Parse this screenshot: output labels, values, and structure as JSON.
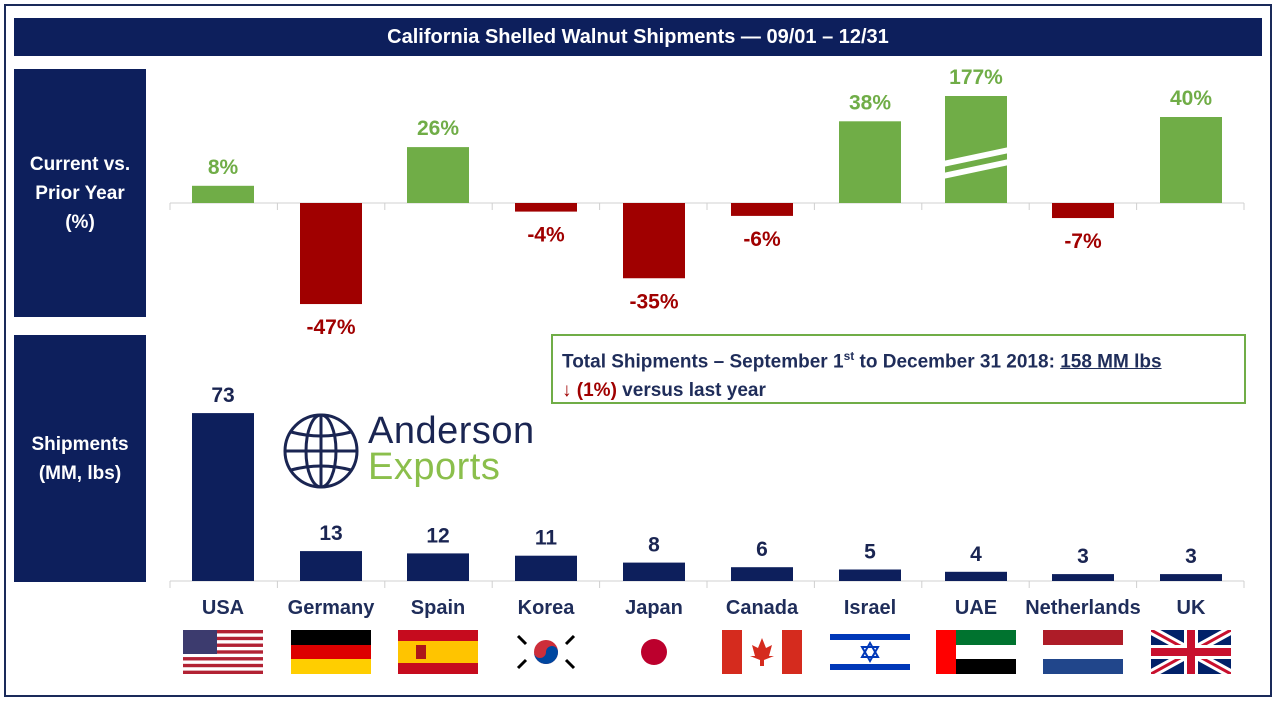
{
  "title": "California Shelled Walnut Shipments — 09/01 – 12/31",
  "side_labels": {
    "top": "Current vs.\nPrior Year\n(%)",
    "bottom": "Shipments\n(MM, lbs)"
  },
  "total_box": {
    "line1_prefix": "Total Shipments – September 1",
    "line1_sup": "st",
    "line1_mid": " to December 31 2018: ",
    "line1_value": "158 MM lbs",
    "line2_arrow": "↓ (1%)",
    "line2_rest": " versus last year"
  },
  "logo": {
    "line1": "Anderson",
    "line2": "Exports"
  },
  "colors": {
    "navy": "#0d1f5c",
    "positive": "#70ad47",
    "negative": "#a00000",
    "bar": "#0d1f5c"
  },
  "chart_data": [
    {
      "type": "bar",
      "title": "Current vs. Prior Year (%)",
      "categories": [
        "USA",
        "Germany",
        "Spain",
        "Korea",
        "Japan",
        "Canada",
        "Israel",
        "UAE",
        "Netherlands",
        "UK"
      ],
      "values": [
        8,
        -47,
        26,
        -4,
        -35,
        -6,
        38,
        177,
        -7,
        40
      ],
      "labels": [
        "8%",
        "-47%",
        "26%",
        "-4%",
        "-35%",
        "-6%",
        "38%",
        "177%",
        "-7%",
        "40%"
      ],
      "axis_break": "UAE"
    },
    {
      "type": "bar",
      "title": "Shipments (MM, lbs)",
      "categories": [
        "USA",
        "Germany",
        "Spain",
        "Korea",
        "Japan",
        "Canada",
        "Israel",
        "UAE",
        "Netherlands",
        "UK"
      ],
      "values": [
        73,
        13,
        12,
        11,
        8,
        6,
        5,
        4,
        3,
        3
      ],
      "labels": [
        "73",
        "13",
        "12",
        "11",
        "8",
        "6",
        "5",
        "4",
        "3",
        "3"
      ]
    }
  ],
  "flags": [
    "us-flag-icon",
    "germany-flag-icon",
    "spain-flag-icon",
    "korea-flag-icon",
    "japan-flag-icon",
    "canada-flag-icon",
    "israel-flag-icon",
    "uae-flag-icon",
    "netherlands-flag-icon",
    "uk-flag-icon"
  ]
}
